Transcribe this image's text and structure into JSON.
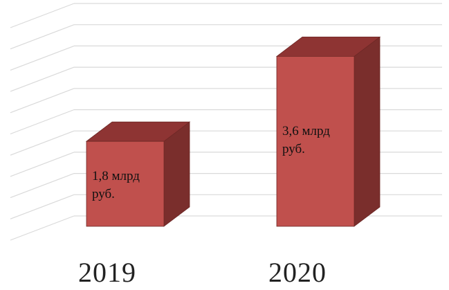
{
  "chart_data": {
    "type": "bar",
    "style": "3d-column",
    "categories": [
      "2019",
      "2020"
    ],
    "values": [
      1.8,
      3.6
    ],
    "data_labels": [
      "1,8 млрд руб.",
      "3,6 млрд руб."
    ],
    "ylim": [
      0,
      4.5
    ],
    "grid": true,
    "legend": "none",
    "colors": {
      "bar_front": "#c0504d",
      "bar_top": "#8e3433",
      "bar_side": "#7a2e2c",
      "bar_edge": "#6e2826",
      "grid": "#d9d9d9"
    }
  }
}
